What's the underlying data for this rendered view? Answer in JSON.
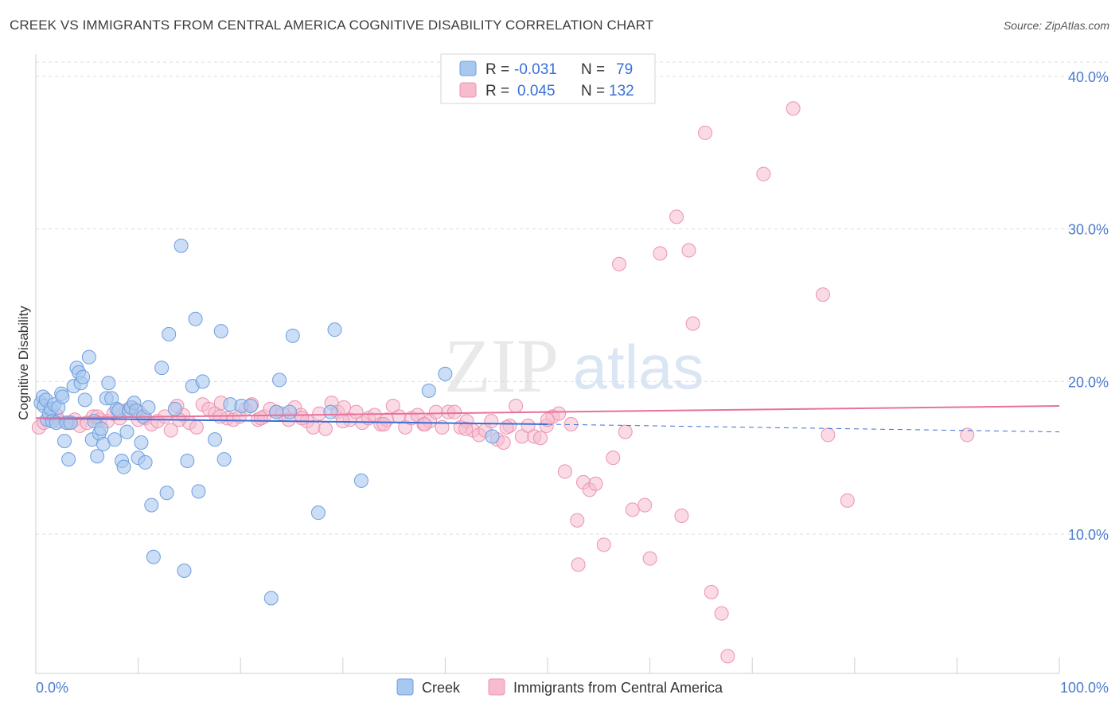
{
  "title": "CREEK VS IMMIGRANTS FROM CENTRAL AMERICA COGNITIVE DISABILITY CORRELATION CHART",
  "source": "Source: ZipAtlas.com",
  "watermark": {
    "zip": "ZIP",
    "atlas": "atlas"
  },
  "legend_box": [
    {
      "r_label": "R =",
      "r_value": "-0.031",
      "n_label": "N =",
      "n_value": "79"
    },
    {
      "r_label": "R =",
      "r_value": "0.045",
      "n_label": "N =",
      "n_value": "132"
    }
  ],
  "colors": {
    "creek_fill": "#a9c8ef",
    "creek_stroke": "#6d9ee0",
    "creek_line": "#3a6fd8",
    "imm_fill": "#f6bccd",
    "imm_stroke": "#ec93b0",
    "imm_line": "#e8729b",
    "grid": "#dcdcdc",
    "tick_text": "#4a7ccc"
  },
  "chart_data": {
    "type": "scatter",
    "title": "CREEK VS IMMIGRANTS FROM CENTRAL AMERICA COGNITIVE DISABILITY CORRELATION CHART",
    "xlabel": "",
    "ylabel": "Cognitive Disability",
    "xlim": [
      0,
      100
    ],
    "ylim": [
      0,
      40
    ],
    "x_tick_labels": [
      "0.0%",
      "100.0%"
    ],
    "y_ticks": [
      10,
      20,
      30,
      40
    ],
    "y_tick_labels": [
      "10.0%",
      "20.0%",
      "30.0%",
      "40.0%"
    ],
    "grid": true,
    "legend_position": "bottom-center",
    "series": [
      {
        "name": "Creek",
        "r": -0.031,
        "n": 79,
        "trend": {
          "x0": 0,
          "y0": 17.6,
          "x1": 50,
          "y1": 17.2,
          "dash_to_x": 100,
          "dash_y": 16.7
        },
        "points": [
          [
            0.5,
            18.6
          ],
          [
            0.7,
            19.0
          ],
          [
            0.8,
            18.4
          ],
          [
            1.0,
            18.8
          ],
          [
            1.1,
            17.5
          ],
          [
            1.3,
            17.9
          ],
          [
            1.5,
            18.2
          ],
          [
            1.6,
            17.4
          ],
          [
            1.8,
            18.5
          ],
          [
            2.0,
            17.3
          ],
          [
            2.2,
            18.3
          ],
          [
            2.5,
            19.2
          ],
          [
            2.6,
            19.0
          ],
          [
            2.8,
            16.1
          ],
          [
            3.0,
            17.3
          ],
          [
            3.2,
            14.9
          ],
          [
            3.4,
            17.3
          ],
          [
            3.7,
            19.7
          ],
          [
            4.0,
            20.9
          ],
          [
            4.2,
            20.6
          ],
          [
            4.4,
            19.9
          ],
          [
            4.6,
            20.3
          ],
          [
            4.8,
            18.8
          ],
          [
            5.2,
            21.6
          ],
          [
            5.5,
            16.2
          ],
          [
            5.7,
            17.4
          ],
          [
            6.0,
            15.1
          ],
          [
            6.2,
            16.6
          ],
          [
            6.4,
            16.9
          ],
          [
            6.6,
            15.9
          ],
          [
            6.9,
            18.9
          ],
          [
            7.1,
            19.9
          ],
          [
            7.4,
            18.9
          ],
          [
            7.7,
            16.2
          ],
          [
            7.9,
            18.2
          ],
          [
            8.1,
            18.1
          ],
          [
            8.4,
            14.8
          ],
          [
            8.6,
            14.4
          ],
          [
            8.9,
            16.7
          ],
          [
            9.1,
            18.1
          ],
          [
            9.3,
            18.3
          ],
          [
            9.6,
            18.6
          ],
          [
            9.8,
            18.1
          ],
          [
            10.0,
            15.0
          ],
          [
            10.3,
            16.0
          ],
          [
            10.5,
            17.7
          ],
          [
            10.7,
            14.7
          ],
          [
            11.0,
            18.3
          ],
          [
            11.3,
            11.9
          ],
          [
            11.5,
            8.5
          ],
          [
            12.3,
            20.9
          ],
          [
            12.8,
            12.7
          ],
          [
            13.0,
            23.1
          ],
          [
            13.6,
            18.2
          ],
          [
            14.2,
            28.9
          ],
          [
            14.5,
            7.6
          ],
          [
            14.8,
            14.8
          ],
          [
            15.3,
            19.7
          ],
          [
            15.6,
            24.1
          ],
          [
            15.9,
            12.8
          ],
          [
            16.3,
            20.0
          ],
          [
            17.5,
            16.2
          ],
          [
            18.1,
            23.3
          ],
          [
            18.4,
            14.9
          ],
          [
            19.0,
            18.5
          ],
          [
            20.1,
            18.4
          ],
          [
            21.0,
            18.4
          ],
          [
            23.0,
            5.8
          ],
          [
            23.5,
            18.0
          ],
          [
            23.8,
            20.1
          ],
          [
            24.8,
            18.0
          ],
          [
            25.1,
            23.0
          ],
          [
            27.6,
            11.4
          ],
          [
            28.8,
            18.0
          ],
          [
            29.2,
            23.4
          ],
          [
            31.8,
            13.5
          ],
          [
            38.4,
            19.4
          ],
          [
            40.0,
            20.5
          ],
          [
            44.6,
            16.4
          ]
        ]
      },
      {
        "name": "Immigrants from Central America",
        "r": 0.045,
        "n": 132,
        "trend": {
          "x0": 0,
          "y0": 17.6,
          "x1": 100,
          "y1": 18.4
        },
        "points": [
          [
            0.3,
            17.0
          ],
          [
            0.8,
            17.3
          ],
          [
            1.5,
            17.6
          ],
          [
            2.3,
            17.4
          ],
          [
            3.2,
            17.3
          ],
          [
            3.8,
            17.5
          ],
          [
            4.3,
            17.1
          ],
          [
            5.0,
            17.3
          ],
          [
            5.6,
            17.7
          ],
          [
            6.3,
            17.5
          ],
          [
            7.0,
            17.4
          ],
          [
            7.6,
            17.9
          ],
          [
            8.2,
            17.6
          ],
          [
            8.8,
            18.1
          ],
          [
            9.4,
            18.3
          ],
          [
            10.1,
            18.0
          ],
          [
            10.7,
            17.6
          ],
          [
            11.3,
            17.2
          ],
          [
            11.9,
            17.4
          ],
          [
            12.6,
            17.7
          ],
          [
            13.2,
            16.8
          ],
          [
            13.8,
            18.4
          ],
          [
            14.4,
            17.8
          ],
          [
            15.0,
            17.3
          ],
          [
            15.7,
            17.0
          ],
          [
            16.3,
            18.5
          ],
          [
            16.9,
            18.2
          ],
          [
            17.5,
            17.9
          ],
          [
            18.1,
            18.6
          ],
          [
            18.7,
            17.6
          ],
          [
            19.3,
            17.5
          ],
          [
            19.9,
            17.7
          ],
          [
            20.5,
            18.2
          ],
          [
            21.1,
            18.5
          ],
          [
            21.7,
            17.5
          ],
          [
            22.3,
            17.7
          ],
          [
            22.9,
            18.2
          ],
          [
            23.5,
            18.0
          ],
          [
            24.1,
            17.9
          ],
          [
            24.7,
            17.5
          ],
          [
            25.3,
            18.3
          ],
          [
            25.9,
            17.8
          ],
          [
            26.5,
            17.4
          ],
          [
            27.1,
            17.0
          ],
          [
            27.7,
            17.9
          ],
          [
            28.3,
            16.9
          ],
          [
            28.9,
            18.6
          ],
          [
            29.5,
            18.0
          ],
          [
            30.1,
            18.3
          ],
          [
            30.7,
            17.5
          ],
          [
            31.3,
            18.0
          ],
          [
            31.9,
            17.3
          ],
          [
            32.5,
            17.6
          ],
          [
            33.1,
            17.8
          ],
          [
            33.7,
            17.2
          ],
          [
            34.3,
            17.5
          ],
          [
            34.9,
            18.4
          ],
          [
            35.5,
            17.7
          ],
          [
            36.1,
            17.0
          ],
          [
            36.7,
            17.6
          ],
          [
            37.3,
            17.8
          ],
          [
            37.9,
            17.2
          ],
          [
            38.5,
            17.4
          ],
          [
            39.1,
            18.0
          ],
          [
            39.7,
            17.0
          ],
          [
            40.3,
            18.0
          ],
          [
            40.9,
            18.0
          ],
          [
            41.5,
            17.0
          ],
          [
            42.1,
            17.4
          ],
          [
            42.7,
            16.8
          ],
          [
            43.3,
            16.5
          ],
          [
            43.9,
            16.8
          ],
          [
            44.5,
            17.4
          ],
          [
            45.1,
            16.2
          ],
          [
            45.7,
            16.0
          ],
          [
            46.3,
            17.1
          ],
          [
            46.9,
            18.4
          ],
          [
            47.5,
            16.4
          ],
          [
            48.1,
            17.1
          ],
          [
            48.7,
            16.4
          ],
          [
            49.3,
            16.3
          ],
          [
            49.9,
            17.1
          ],
          [
            50.5,
            17.7
          ],
          [
            51.1,
            17.9
          ],
          [
            51.7,
            14.1
          ],
          [
            52.3,
            17.2
          ],
          [
            52.9,
            10.9
          ],
          [
            53.5,
            13.4
          ],
          [
            54.1,
            12.9
          ],
          [
            54.7,
            13.3
          ],
          [
            2.0,
            17.8
          ],
          [
            6.0,
            17.7
          ],
          [
            10.0,
            17.5
          ],
          [
            14.0,
            17.5
          ],
          [
            18.0,
            17.7
          ],
          [
            22.0,
            17.6
          ],
          [
            26.0,
            17.6
          ],
          [
            30.0,
            17.4
          ],
          [
            34.0,
            17.2
          ],
          [
            38.0,
            17.2
          ],
          [
            42.0,
            16.9
          ],
          [
            46.0,
            17.0
          ],
          [
            50.0,
            17.5
          ],
          [
            57.0,
            27.7
          ],
          [
            61.0,
            28.4
          ],
          [
            62.6,
            30.8
          ],
          [
            63.1,
            11.2
          ],
          [
            63.8,
            28.6
          ],
          [
            64.2,
            23.8
          ],
          [
            65.4,
            36.3
          ],
          [
            66.0,
            6.2
          ],
          [
            67.0,
            4.8
          ],
          [
            67.6,
            2.0
          ],
          [
            71.1,
            33.6
          ],
          [
            74.0,
            37.9
          ],
          [
            76.9,
            25.7
          ],
          [
            77.4,
            16.5
          ],
          [
            79.3,
            12.2
          ],
          [
            91.0,
            16.5
          ],
          [
            60.0,
            8.4
          ],
          [
            55.5,
            9.3
          ],
          [
            56.4,
            15.0
          ],
          [
            53.0,
            8.0
          ],
          [
            58.3,
            11.6
          ],
          [
            59.5,
            11.9
          ],
          [
            57.6,
            16.7
          ]
        ]
      }
    ]
  },
  "bottom_legend": [
    "Creek",
    "Immigrants from Central America"
  ]
}
